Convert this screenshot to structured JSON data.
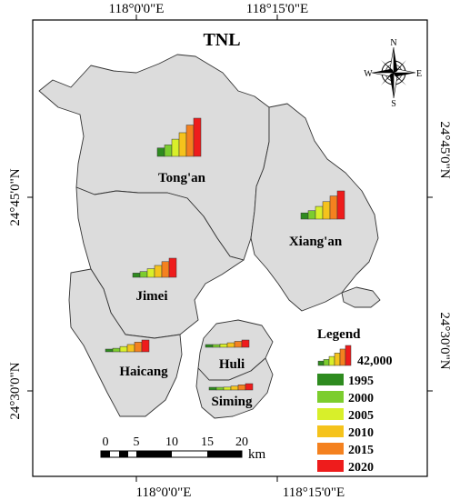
{
  "title": "TNL",
  "coords": {
    "top": [
      "118°0'0\"E",
      "118°15'0\"E"
    ],
    "bottom": [
      "118°0'0\"E",
      "118°15'0\"E"
    ],
    "left": [
      "24°45'0\"N",
      "24°30'0\"N"
    ],
    "right": [
      "24°45'0\"N",
      "24°30'0\"N"
    ]
  },
  "compass": {
    "n": "N",
    "s": "S",
    "e": "E",
    "w": "W"
  },
  "districts": [
    {
      "name": "Tong'an"
    },
    {
      "name": "Xiang'an"
    },
    {
      "name": "Jimei"
    },
    {
      "name": "Haicang"
    },
    {
      "name": "Huli"
    },
    {
      "name": "Siming"
    }
  ],
  "legend": {
    "title": "Legend",
    "max_label": "42,000",
    "items": [
      {
        "year": "1995",
        "color": "#2e8b1f"
      },
      {
        "year": "2000",
        "color": "#7ccd2e"
      },
      {
        "year": "2005",
        "color": "#d8ef2a"
      },
      {
        "year": "2010",
        "color": "#f5c31c"
      },
      {
        "year": "2015",
        "color": "#f4811f"
      },
      {
        "year": "2020",
        "color": "#ee1c1c"
      }
    ]
  },
  "scalebar": {
    "ticks": [
      "0",
      "5",
      "10",
      "15",
      "20"
    ],
    "unit": "km"
  }
}
